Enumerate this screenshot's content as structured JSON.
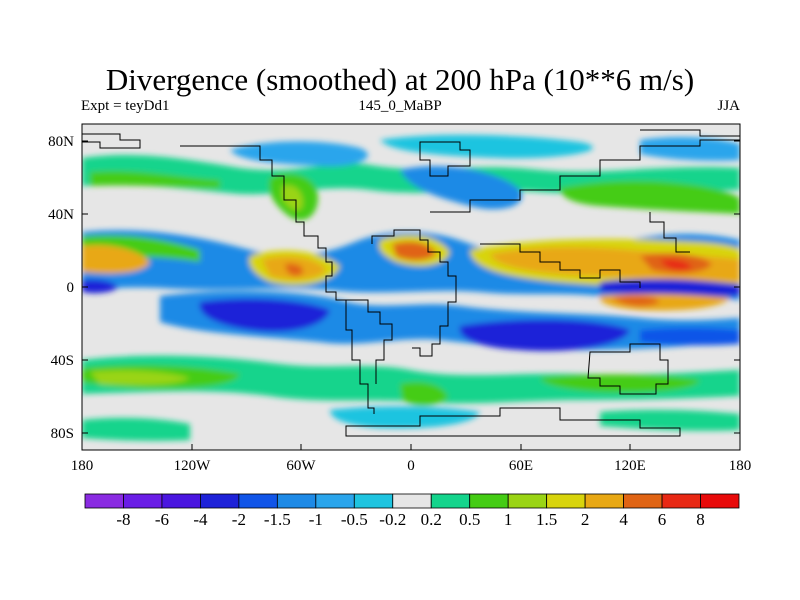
{
  "title": "Divergence (smoothed) at 200 hPa (10**6 m/s)",
  "subtitle": {
    "left": "Expt = teyDd1",
    "center": "145_0_MaBP",
    "right": "JJA"
  },
  "axes": {
    "y_labels": [
      "80N",
      "40N",
      "0",
      "40S",
      "80S"
    ],
    "x_labels": [
      "180",
      "120W",
      "60W",
      "0",
      "60E",
      "120E",
      "180"
    ]
  },
  "colorbar": {
    "labels": [
      "-8",
      "-6",
      "-4",
      "-2",
      "-1.5",
      "-1",
      "-0.5",
      "-0.2",
      "0.2",
      "0.5",
      "1",
      "1.5",
      "2",
      "4",
      "6",
      "8"
    ],
    "colors": [
      "#8a2be2",
      "#6a1de6",
      "#4a16e0",
      "#1e22d8",
      "#1155e8",
      "#1e8ae6",
      "#2aa5ec",
      "#1fc4e0",
      "#e6e6e6",
      "#14d48c",
      "#44cc14",
      "#9ad414",
      "#d8d40c",
      "#e8a814",
      "#e06414",
      "#e82814",
      "#e80a0a"
    ]
  },
  "map_colors": {
    "neutral": "#e6e6e6",
    "border": "#000000"
  }
}
